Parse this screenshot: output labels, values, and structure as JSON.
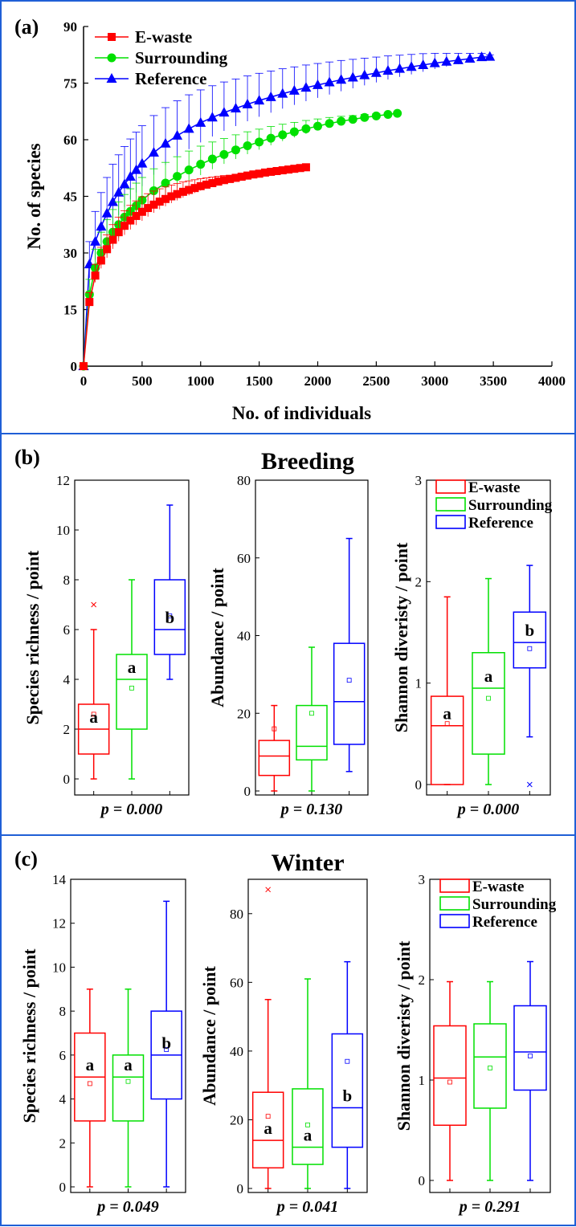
{
  "figure": {
    "border_color": "#1f5fd6",
    "colors": {
      "E-waste": "#ff0000",
      "Surrounding": "#00e000",
      "Reference": "#0000ff"
    }
  },
  "panel_a": {
    "label": "(a)",
    "xlabel": "No. of individuals",
    "ylabel": "No. of species",
    "x_ticks": [
      "0",
      "500",
      "1000",
      "1500",
      "2000",
      "2500",
      "3000",
      "3500",
      "4000"
    ],
    "y_ticks": [
      "0",
      "15",
      "30",
      "45",
      "60",
      "75",
      "90"
    ],
    "legend": [
      "E-waste",
      "Surrounding",
      "Reference"
    ]
  },
  "panel_b": {
    "label": "(b)",
    "title": "Breeding",
    "legend": [
      "E-waste",
      "Surrounding",
      "Reference"
    ],
    "subplots": [
      {
        "ylabel": "Species richness / point",
        "y_ticks": [
          "0",
          "2",
          "4",
          "6",
          "8",
          "10",
          "12"
        ],
        "p": "p = 0.000",
        "letters": [
          "a",
          "a",
          "b"
        ]
      },
      {
        "ylabel": "Abundance / point",
        "y_ticks": [
          "0",
          "20",
          "40",
          "60",
          "80"
        ],
        "p": "p = 0.130",
        "letters": [
          "",
          "",
          ""
        ]
      },
      {
        "ylabel": "Shannon diveristy / point",
        "y_ticks": [
          "0",
          "1",
          "2",
          "3"
        ],
        "p": "p = 0.000",
        "letters": [
          "a",
          "a",
          "b"
        ]
      }
    ]
  },
  "panel_c": {
    "label": "(c)",
    "title": "Winter",
    "legend": [
      "E-waste",
      "Surrounding",
      "Reference"
    ],
    "subplots": [
      {
        "ylabel": "Species richness / point",
        "y_ticks": [
          "0",
          "2",
          "4",
          "6",
          "8",
          "10",
          "12",
          "14"
        ],
        "p": "p = 0.049",
        "letters": [
          "a",
          "a",
          "b"
        ]
      },
      {
        "ylabel": "Abundance / point",
        "y_ticks": [
          "0",
          "20",
          "40",
          "60",
          "80"
        ],
        "p": "p = 0.041",
        "letters": [
          "a",
          "a",
          "b"
        ]
      },
      {
        "ylabel": "Shannon diveristy / point",
        "y_ticks": [
          "0",
          "1",
          "2",
          "3"
        ],
        "p": "p = 0.291",
        "letters": [
          "",
          "",
          ""
        ]
      }
    ]
  },
  "chart_data": [
    {
      "type": "line",
      "panel": "a",
      "xlabel": "No. of individuals",
      "ylabel": "No. of species",
      "xlim": [
        0,
        4000
      ],
      "ylim": [
        0,
        90
      ],
      "series": [
        {
          "name": "E-waste",
          "color": "#ff0000",
          "marker": "square",
          "x": [
            0,
            50,
            100,
            150,
            200,
            250,
            300,
            350,
            400,
            450,
            500,
            550,
            600,
            650,
            700,
            750,
            800,
            850,
            900,
            950,
            1000,
            1050,
            1100,
            1150,
            1200,
            1250,
            1300,
            1350,
            1400,
            1450,
            1500,
            1550,
            1600,
            1650,
            1700,
            1750,
            1800,
            1850,
            1900
          ],
          "y": [
            0,
            17,
            24,
            28,
            31,
            33.5,
            35.5,
            37.2,
            38.6,
            39.8,
            40.9,
            41.9,
            42.8,
            43.6,
            44.3,
            45,
            45.6,
            46.2,
            46.7,
            47.2,
            47.7,
            48.1,
            48.5,
            48.9,
            49.3,
            49.6,
            49.9,
            50.2,
            50.5,
            50.8,
            51,
            51.3,
            51.5,
            51.7,
            51.9,
            52.1,
            52.3,
            52.5,
            52.7
          ],
          "err": [
            0,
            2.5,
            3,
            3.5,
            3.8,
            4,
            4,
            4,
            4,
            4,
            4,
            3.8,
            3.6,
            3.4,
            3.2,
            3,
            2.8,
            2.6,
            2.4,
            2.2,
            2,
            1.8,
            1.6,
            1.4,
            1.2,
            1,
            0.9,
            0.8,
            0.7,
            0.6,
            0.5,
            0.45,
            0.4,
            0.35,
            0.3,
            0.25,
            0.2,
            0.15,
            0.1
          ]
        },
        {
          "name": "Surrounding",
          "color": "#00e000",
          "marker": "circle",
          "x": [
            0,
            50,
            100,
            150,
            200,
            250,
            300,
            350,
            400,
            450,
            500,
            600,
            700,
            800,
            900,
            1000,
            1100,
            1200,
            1300,
            1400,
            1500,
            1600,
            1700,
            1800,
            1900,
            2000,
            2100,
            2200,
            2300,
            2400,
            2500,
            2600,
            2680
          ],
          "y": [
            0,
            19,
            26,
            30,
            33,
            35.5,
            37.5,
            39.5,
            41,
            42.5,
            44,
            46.5,
            48.5,
            50.3,
            52,
            53.5,
            54.9,
            56.1,
            57.3,
            58.4,
            59.4,
            60.4,
            61.3,
            62.1,
            62.9,
            63.6,
            64.3,
            64.9,
            65.4,
            65.9,
            66.3,
            66.7,
            67
          ],
          "err": [
            0,
            4,
            5,
            5.5,
            5.8,
            6,
            6,
            6,
            6,
            6,
            6,
            5.8,
            5.5,
            5.2,
            5,
            4.8,
            4.5,
            4.2,
            4,
            3.7,
            3.4,
            3.1,
            2.8,
            2.5,
            2.2,
            1.9,
            1.6,
            1.3,
            1,
            0.8,
            0.6,
            0.4,
            0.2
          ]
        },
        {
          "name": "Reference",
          "color": "#0000ff",
          "marker": "triangle",
          "x": [
            0,
            50,
            100,
            150,
            200,
            250,
            300,
            350,
            400,
            450,
            500,
            600,
            700,
            800,
            900,
            1000,
            1100,
            1200,
            1300,
            1400,
            1500,
            1600,
            1700,
            1800,
            1900,
            2000,
            2100,
            2200,
            2300,
            2400,
            2500,
            2600,
            2700,
            2800,
            2900,
            3000,
            3100,
            3200,
            3300,
            3400,
            3470
          ],
          "y": [
            0,
            27,
            33,
            37,
            40.5,
            43.5,
            46,
            48.2,
            50.2,
            52,
            53.7,
            56.6,
            59,
            61.1,
            62.9,
            64.5,
            65.9,
            67.2,
            68.3,
            69.4,
            70.4,
            71.3,
            72.2,
            73,
            73.8,
            74.5,
            75.2,
            75.9,
            76.5,
            77.1,
            77.7,
            78.3,
            78.8,
            79.3,
            79.8,
            80.3,
            80.7,
            81.1,
            81.5,
            81.9,
            82
          ],
          "err": [
            0,
            6,
            8,
            9,
            9.5,
            10,
            10,
            10,
            10,
            10,
            10,
            9.8,
            9.5,
            9.2,
            9,
            8.7,
            8.4,
            8.1,
            7.8,
            7.5,
            7.2,
            6.9,
            6.6,
            6.3,
            6,
            5.7,
            5.4,
            5.1,
            4.8,
            4.5,
            4.2,
            3.9,
            3.6,
            3.3,
            3,
            2.6,
            2.2,
            1.8,
            1.4,
            1,
            0.5
          ]
        }
      ]
    },
    {
      "type": "box",
      "panel": "b",
      "index": 0,
      "ylabel": "Species richness / point",
      "ylim": [
        0,
        12
      ],
      "boxes": [
        {
          "name": "E-waste",
          "min": 0,
          "q1": 1,
          "median": 2,
          "q3": 3,
          "max": 6,
          "mean": 2.6,
          "outliers": [
            7
          ]
        },
        {
          "name": "Surrounding",
          "min": 0,
          "q1": 2,
          "median": 4,
          "q3": 5,
          "max": 8,
          "mean": 3.65,
          "outliers": []
        },
        {
          "name": "Reference",
          "min": 4,
          "q1": 5,
          "median": 6,
          "q3": 8,
          "max": 11,
          "mean": 6.55,
          "outliers": []
        }
      ]
    },
    {
      "type": "box",
      "panel": "b",
      "index": 1,
      "ylabel": "Abundance / point",
      "ylim": [
        0,
        80
      ],
      "boxes": [
        {
          "name": "E-waste",
          "min": 0,
          "q1": 4,
          "median": 9,
          "q3": 13,
          "max": 22,
          "mean": 16,
          "outliers": []
        },
        {
          "name": "Surrounding",
          "min": 0,
          "q1": 8,
          "median": 11.5,
          "q3": 22,
          "max": 37,
          "mean": 20,
          "outliers": []
        },
        {
          "name": "Reference",
          "min": 5,
          "q1": 12,
          "median": 23,
          "q3": 38,
          "max": 65,
          "mean": 28.5,
          "outliers": []
        }
      ]
    },
    {
      "type": "box",
      "panel": "b",
      "index": 2,
      "ylabel": "Shannon diveristy / point",
      "ylim": [
        0,
        3
      ],
      "boxes": [
        {
          "name": "E-waste",
          "min": 0,
          "q1": 0,
          "median": 0.58,
          "q3": 0.87,
          "max": 1.85,
          "mean": 0.6,
          "outliers": []
        },
        {
          "name": "Surrounding",
          "min": 0,
          "q1": 0.3,
          "median": 0.95,
          "q3": 1.3,
          "max": 2.03,
          "mean": 0.85,
          "outliers": []
        },
        {
          "name": "Reference",
          "min": 0.47,
          "q1": 1.15,
          "median": 1.4,
          "q3": 1.7,
          "max": 2.16,
          "mean": 1.34,
          "outliers": [
            0
          ]
        }
      ]
    },
    {
      "type": "box",
      "panel": "c",
      "index": 0,
      "ylabel": "Species richness / point",
      "ylim": [
        0,
        14
      ],
      "boxes": [
        {
          "name": "E-waste",
          "min": 0,
          "q1": 3,
          "median": 5,
          "q3": 7,
          "max": 9,
          "mean": 4.7,
          "outliers": []
        },
        {
          "name": "Surrounding",
          "min": 0,
          "q1": 3,
          "median": 5,
          "q3": 6,
          "max": 9,
          "mean": 4.8,
          "outliers": []
        },
        {
          "name": "Reference",
          "min": 0,
          "q1": 4,
          "median": 6,
          "q3": 8,
          "max": 13,
          "mean": 6.25,
          "outliers": []
        }
      ]
    },
    {
      "type": "box",
      "panel": "c",
      "index": 1,
      "ylabel": "Abundance / point",
      "ylim": [
        0,
        90
      ],
      "boxes": [
        {
          "name": "E-waste",
          "min": 0,
          "q1": 6,
          "median": 14,
          "q3": 28,
          "max": 55,
          "mean": 21,
          "outliers": [
            87
          ]
        },
        {
          "name": "Surrounding",
          "min": 0,
          "q1": 7,
          "median": 12,
          "q3": 29,
          "max": 61,
          "mean": 18.5,
          "outliers": []
        },
        {
          "name": "Reference",
          "min": 0,
          "q1": 12,
          "median": 23.5,
          "q3": 45,
          "max": 66,
          "mean": 37,
          "outliers": []
        }
      ]
    },
    {
      "type": "box",
      "panel": "c",
      "index": 2,
      "ylabel": "Shannon diveristy / point",
      "ylim": [
        0,
        3
      ],
      "boxes": [
        {
          "name": "E-waste",
          "min": 0,
          "q1": 0.55,
          "median": 1.02,
          "q3": 1.54,
          "max": 1.98,
          "mean": 0.98,
          "outliers": []
        },
        {
          "name": "Surrounding",
          "min": 0,
          "q1": 0.72,
          "median": 1.23,
          "q3": 1.56,
          "max": 1.98,
          "mean": 1.12,
          "outliers": []
        },
        {
          "name": "Reference",
          "min": 0,
          "q1": 0.9,
          "median": 1.28,
          "q3": 1.74,
          "max": 2.18,
          "mean": 1.24,
          "outliers": []
        }
      ]
    }
  ]
}
